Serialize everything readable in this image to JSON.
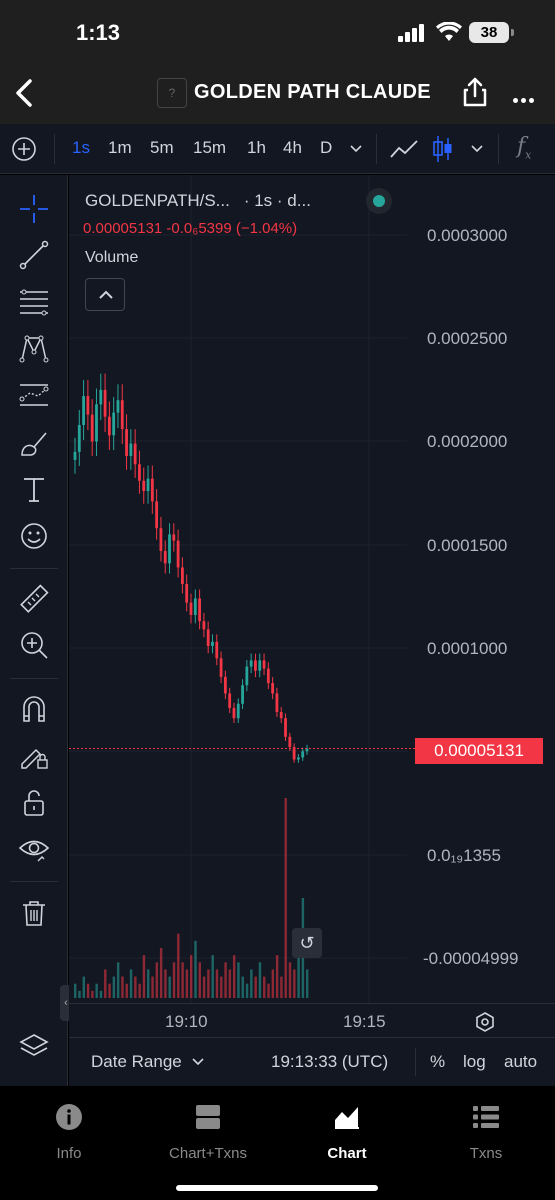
{
  "status_bar": {
    "time": "1:13",
    "battery": "38"
  },
  "header": {
    "title": "GOLDEN PATH CLAUDE",
    "logo_placeholder": "?"
  },
  "toolbar": {
    "intervals": [
      "1s",
      "1m",
      "5m",
      "15m",
      "1h",
      "4h",
      "D"
    ],
    "active_interval": "1s",
    "indicator_label": "f"
  },
  "legend": {
    "symbol": "GOLDENPATH/S...",
    "interval_suffix": "· 1s · d...",
    "ohlc": "0.00005131  -0.0₆5399 (−1.04%)",
    "volume_label": "Volume"
  },
  "price_axis": {
    "labels": [
      "0.0003000",
      "0.0002500",
      "0.0002000",
      "0.0001500",
      "0.0001000",
      "0.0₁₉1355",
      "-0.00004999"
    ],
    "last_price": "0.00005131"
  },
  "time_axis": {
    "labels": [
      "19:10",
      "19:15"
    ]
  },
  "bottom_controls": {
    "date_range": "Date Range",
    "clock": "19:13:33 (UTC)",
    "percent": "%",
    "log": "log",
    "auto": "auto"
  },
  "tabs": [
    {
      "label": "Info",
      "icon": "info-icon"
    },
    {
      "label": "Chart+Txns",
      "icon": "chart-txns-icon"
    },
    {
      "label": "Chart",
      "icon": "chart-icon",
      "active": true
    },
    {
      "label": "Txns",
      "icon": "list-icon"
    }
  ],
  "colors": {
    "up": "#26a69a",
    "down": "#f23645",
    "accent": "#2962ff",
    "background": "#131722"
  },
  "chart_data": {
    "type": "candlestick",
    "title": "GOLDENPATH/S...",
    "xlabel": "",
    "ylabel": "",
    "x_ticks": [
      "19:10",
      "19:15"
    ],
    "ylim": [
      -4.999e-05,
      0.0003
    ],
    "close_series": [
      0.000195,
      0.000208,
      0.000222,
      0.000213,
      0.0002,
      0.000218,
      0.000225,
      0.000212,
      0.000203,
      0.000214,
      0.00022,
      0.000206,
      0.000193,
      0.000199,
      0.000189,
      0.000181,
      0.000176,
      0.000182,
      0.000171,
      0.000158,
      0.000147,
      0.000141,
      0.000155,
      0.000152,
      0.000139,
      0.000131,
      0.000122,
      0.000116,
      0.000124,
      0.000113,
      0.000109,
      0.000101,
      0.000103,
      9.5e-05,
      8.6e-05,
      7.8e-05,
      7.1e-05,
      6.6e-05,
      7.3e-05,
      8.2e-05,
      9.1e-05,
      9.4e-05,
      8.9e-05,
      9.4e-05,
      9e-05,
      8.3e-05,
      7.8e-05,
      6.9e-05,
      6.6e-05,
      5.7e-05,
      5.2e-05,
      4.6e-05,
      4.7e-05,
      5e-05,
      5.131e-05
    ],
    "volume": [
      2,
      1,
      3,
      2,
      1,
      2,
      1,
      4,
      2,
      3,
      5,
      3,
      2,
      4,
      3,
      2,
      6,
      4,
      3,
      5,
      7,
      4,
      3,
      5,
      9,
      5,
      4,
      6,
      8,
      5,
      3,
      4,
      6,
      4,
      3,
      5,
      4,
      6,
      5,
      3,
      2,
      4,
      3,
      5,
      3,
      2,
      4,
      6,
      3,
      28,
      5,
      4,
      6,
      14,
      4
    ],
    "last_price": 5.131e-05
  }
}
